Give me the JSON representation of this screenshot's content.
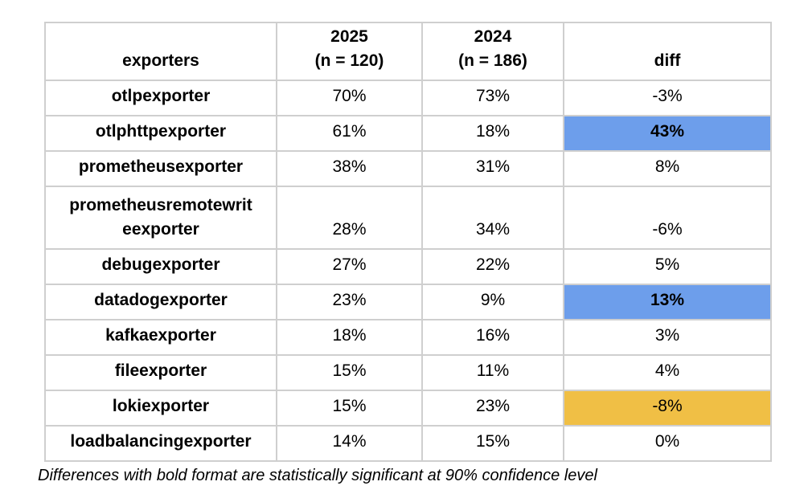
{
  "table": {
    "columns": [
      {
        "label": "exporters"
      },
      {
        "label": "2025",
        "sublabel": "(n = 120)"
      },
      {
        "label": "2024",
        "sublabel": "(n = 186)"
      },
      {
        "label": "diff"
      }
    ],
    "rows": [
      {
        "exporter": "otlpexporter",
        "y2025": "70%",
        "y2024": "73%",
        "diff": "-3%",
        "highlight": "none",
        "diff_bold": false,
        "tall": false
      },
      {
        "exporter": "otlphttpexporter",
        "y2025": "61%",
        "y2024": "18%",
        "diff": "43%",
        "highlight": "blue",
        "diff_bold": true,
        "tall": false
      },
      {
        "exporter": "prometheusexporter",
        "y2025": "38%",
        "y2024": "31%",
        "diff": "8%",
        "highlight": "none",
        "diff_bold": false,
        "tall": false
      },
      {
        "exporter": "prometheusremotewrit​eexporter",
        "y2025": "28%",
        "y2024": "34%",
        "diff": "-6%",
        "highlight": "none",
        "diff_bold": false,
        "tall": true
      },
      {
        "exporter": "debugexporter",
        "y2025": "27%",
        "y2024": "22%",
        "diff": "5%",
        "highlight": "none",
        "diff_bold": false,
        "tall": false
      },
      {
        "exporter": "datadogexporter",
        "y2025": "23%",
        "y2024": "9%",
        "diff": "13%",
        "highlight": "blue",
        "diff_bold": true,
        "tall": false
      },
      {
        "exporter": "kafkaexporter",
        "y2025": "18%",
        "y2024": "16%",
        "diff": "3%",
        "highlight": "none",
        "diff_bold": false,
        "tall": false
      },
      {
        "exporter": "fileexporter",
        "y2025": "15%",
        "y2024": "11%",
        "diff": "4%",
        "highlight": "none",
        "diff_bold": false,
        "tall": false
      },
      {
        "exporter": "lokiexporter",
        "y2025": "15%",
        "y2024": "23%",
        "diff": "-8%",
        "highlight": "orange",
        "diff_bold": false,
        "tall": false
      },
      {
        "exporter": "loadbalancingexporter",
        "y2025": "14%",
        "y2024": "15%",
        "diff": "0%",
        "highlight": "none",
        "diff_bold": false,
        "tall": false
      }
    ]
  },
  "footnote": "Differences with bold format are statistically significant at 90% confidence level",
  "colors": {
    "highlight_blue": "#6d9eeb",
    "highlight_orange": "#f0bf45",
    "border": "#cfcfcf",
    "text": "#000000"
  }
}
